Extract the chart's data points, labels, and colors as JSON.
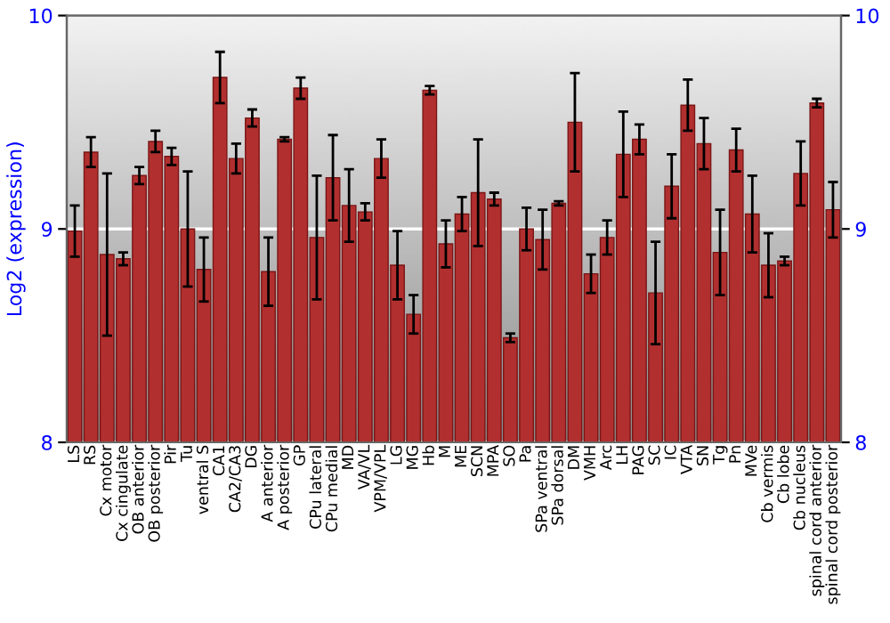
{
  "chart_data": {
    "type": "bar",
    "ylabel": "Log2 (expression)",
    "categories": [
      "LS",
      "RS",
      "Cx motor",
      "Cx cingulate",
      "OB anterior",
      "OB posterior",
      "Pir",
      "Tu",
      "ventral S",
      "CA1",
      "CA2/CA3",
      "DG",
      "A anterior",
      "A posterior",
      "GP",
      "CPu lateral",
      "CPu medial",
      "MD",
      "VA/VL",
      "VPM/VPL",
      "LG",
      "MG",
      "Hb",
      "M",
      "ME",
      "SCN",
      "MPA",
      "SO",
      "Pa",
      "SPa ventral",
      "SPa dorsal",
      "DM",
      "VMH",
      "Arc",
      "LH",
      "PAG",
      "SC",
      "IC",
      "VTA",
      "SN",
      "Tg",
      "Pn",
      "MVe",
      "Cb vermis",
      "Cb lobe",
      "Cb nucleus",
      "spinal cord anterior",
      "spinal cord posterior"
    ],
    "values": [
      8.99,
      9.36,
      8.88,
      8.86,
      9.25,
      9.41,
      9.34,
      9.0,
      8.81,
      9.71,
      9.33,
      9.52,
      8.8,
      9.42,
      9.66,
      8.96,
      9.24,
      9.11,
      9.08,
      9.33,
      8.83,
      8.6,
      9.65,
      8.93,
      9.07,
      9.17,
      9.14,
      8.49,
      9.0,
      8.95,
      9.12,
      9.5,
      8.79,
      8.96,
      9.35,
      9.42,
      8.7,
      9.2,
      9.58,
      9.4,
      8.89,
      9.37,
      9.07,
      8.83,
      8.85,
      9.26,
      9.59,
      9.09
    ],
    "errors": [
      0.12,
      0.07,
      0.38,
      0.03,
      0.04,
      0.05,
      0.04,
      0.27,
      0.15,
      0.12,
      0.07,
      0.04,
      0.16,
      0.01,
      0.05,
      0.29,
      0.2,
      0.17,
      0.04,
      0.09,
      0.16,
      0.09,
      0.02,
      0.11,
      0.08,
      0.25,
      0.03,
      0.02,
      0.1,
      0.14,
      0.01,
      0.23,
      0.09,
      0.08,
      0.2,
      0.07,
      0.24,
      0.15,
      0.12,
      0.12,
      0.2,
      0.1,
      0.18,
      0.15,
      0.02,
      0.15,
      0.02,
      0.13
    ],
    "color": "#b22f2f",
    "ylim": [
      8,
      10
    ],
    "yticks": [
      8,
      9,
      10
    ],
    "y2lim": [
      8,
      10
    ],
    "y2ticks": [
      8,
      9,
      10
    ],
    "grid": "y"
  }
}
